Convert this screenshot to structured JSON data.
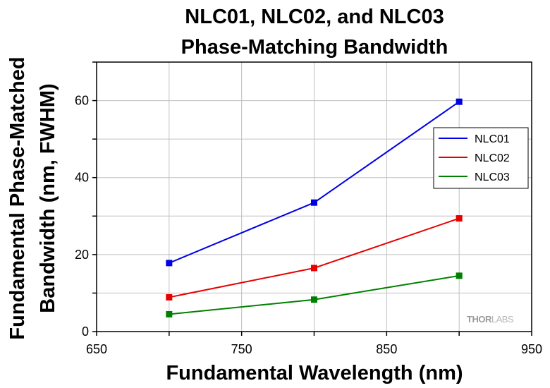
{
  "chart_data": {
    "type": "line",
    "title_lines": [
      "NLC01, NLC02, and NLC03",
      "Phase-Matching Bandwidth"
    ],
    "xlabel": "Fundamental Wavelength (nm)",
    "ylabel_lines": [
      "Fundamental Phase-Matched",
      "Bandwidth (nm, FWHM)"
    ],
    "xlim": [
      650,
      950
    ],
    "ylim": [
      0,
      70
    ],
    "x_ticks": [
      650,
      750,
      850,
      950
    ],
    "y_ticks": [
      0,
      20,
      40,
      60
    ],
    "x_grid": [
      650,
      700,
      750,
      800,
      850,
      900,
      950
    ],
    "y_grid": [
      0,
      10,
      20,
      30,
      40,
      50,
      60,
      70
    ],
    "grid": true,
    "legend_position": "right",
    "x": [
      700,
      800,
      900
    ],
    "series": [
      {
        "name": "NLC01",
        "color": "#0000e6",
        "values": [
          17.8,
          33.5,
          59.7
        ]
      },
      {
        "name": "NLC02",
        "color": "#e60000",
        "values": [
          8.9,
          16.5,
          29.4
        ]
      },
      {
        "name": "NLC03",
        "color": "#008000",
        "values": [
          4.5,
          8.3,
          14.5
        ]
      }
    ]
  },
  "watermark": {
    "part1": "THOR",
    "part2": "LABS"
  }
}
